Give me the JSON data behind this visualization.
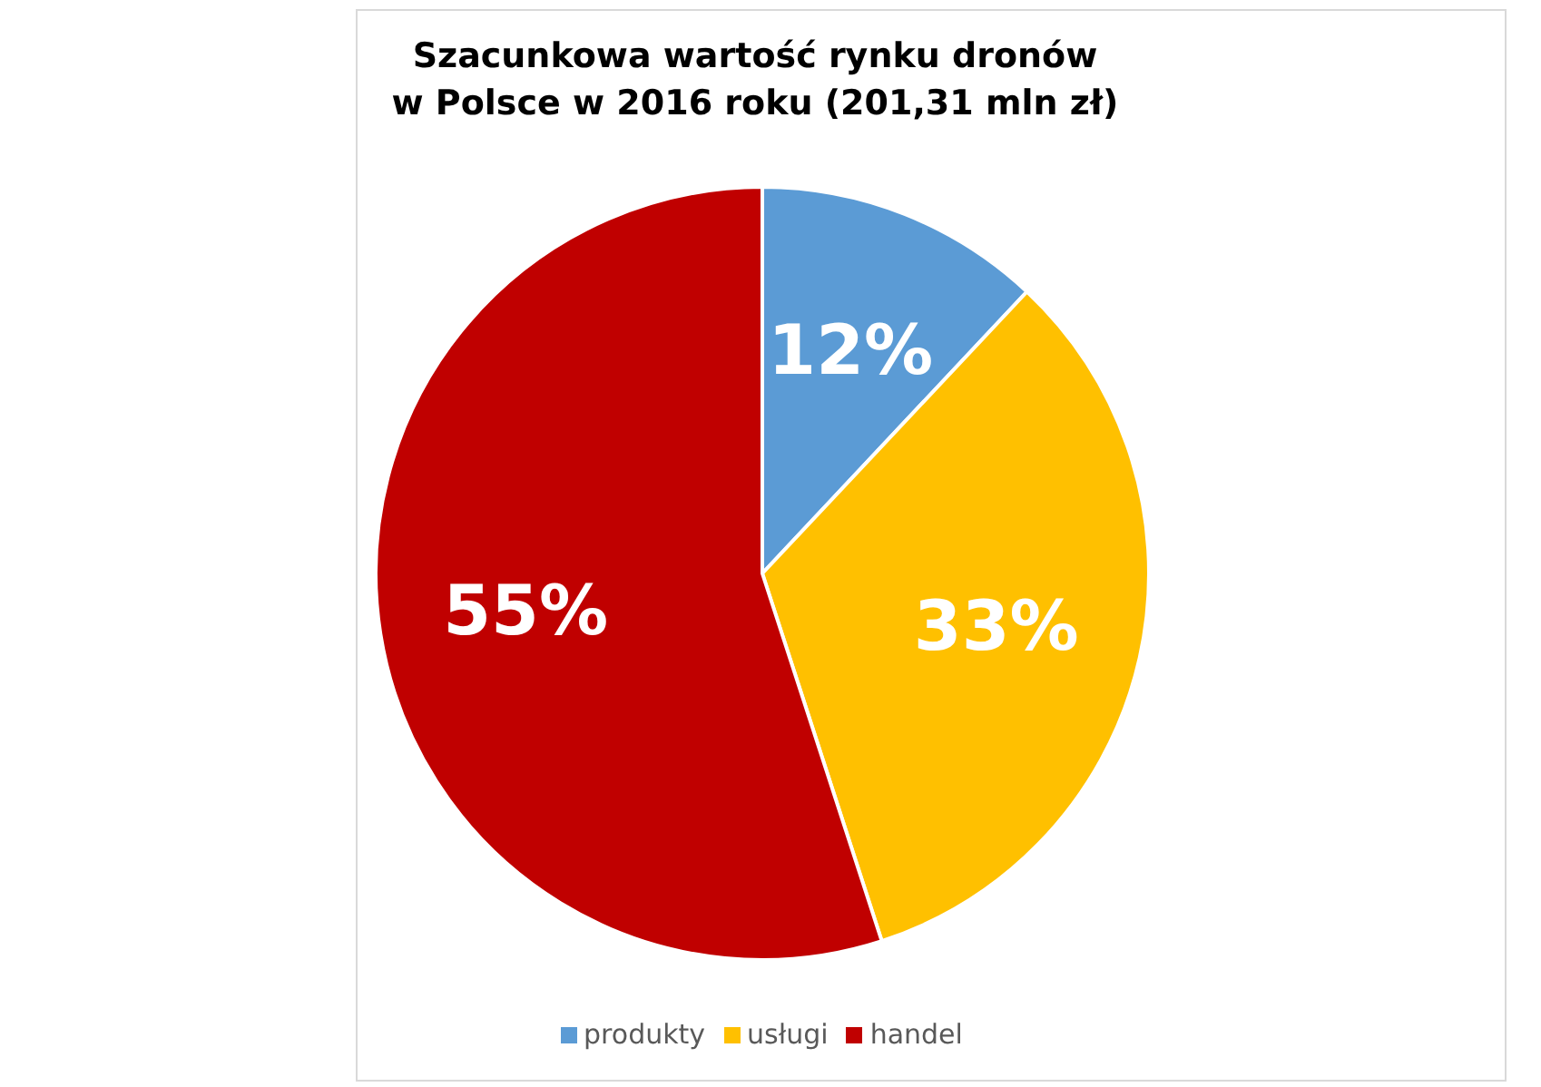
{
  "chart_data": {
    "type": "pie",
    "title": "Szacunkowa wartość rynku dronów\nw Polsce w 2016 roku (201,31 mln zł)",
    "categories": [
      "produkty",
      "usługi",
      "handel"
    ],
    "values": [
      12,
      33,
      55
    ],
    "colors": [
      "#5b9bd5",
      "#ffc000",
      "#c00000"
    ],
    "value_labels": [
      "12%",
      "33%",
      "55%"
    ],
    "legend": "bottom"
  }
}
